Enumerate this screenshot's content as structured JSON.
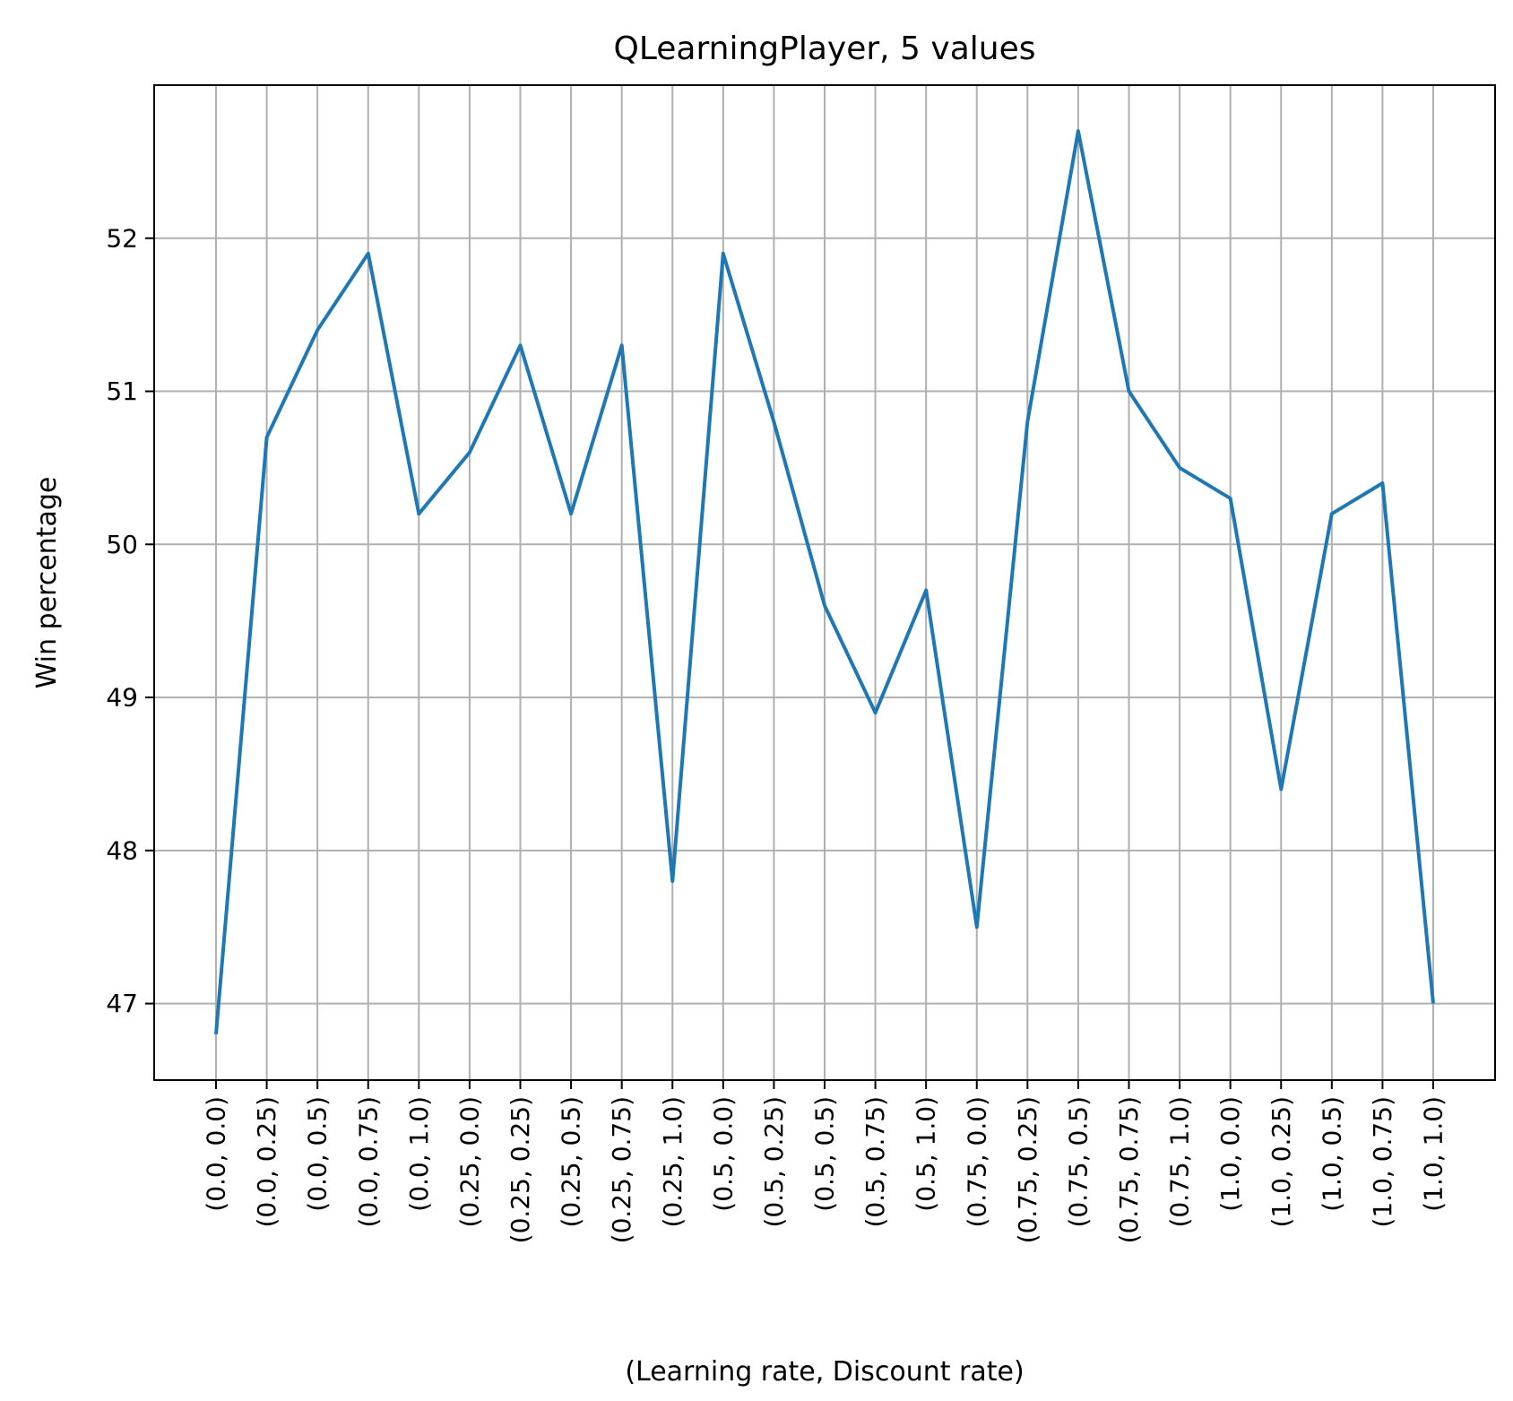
{
  "chart_data": {
    "type": "line",
    "title": "QLearningPlayer, 5 values",
    "xlabel": "(Learning rate,  Discount rate)",
    "ylabel": "Win percentage",
    "categories": [
      "(0.0, 0.0)",
      "(0.0, 0.25)",
      "(0.0, 0.5)",
      "(0.0, 0.75)",
      "(0.0, 1.0)",
      "(0.25, 0.0)",
      "(0.25, 0.25)",
      "(0.25, 0.5)",
      "(0.25, 0.75)",
      "(0.25, 1.0)",
      "(0.5, 0.0)",
      "(0.5, 0.25)",
      "(0.5, 0.5)",
      "(0.5, 0.75)",
      "(0.5, 1.0)",
      "(0.75, 0.0)",
      "(0.75, 0.25)",
      "(0.75, 0.5)",
      "(0.75, 0.75)",
      "(0.75, 1.0)",
      "(1.0, 0.0)",
      "(1.0, 0.25)",
      "(1.0, 0.5)",
      "(1.0, 0.75)",
      "(1.0, 1.0)"
    ],
    "series": [
      {
        "color": "#1f77b4",
        "values": [
          46.8,
          50.7,
          51.4,
          51.9,
          50.2,
          50.6,
          51.3,
          50.2,
          51.3,
          47.8,
          51.9,
          50.8,
          49.6,
          48.9,
          49.7,
          47.5,
          50.8,
          52.7,
          51.0,
          50.5,
          50.3,
          48.4,
          50.2,
          50.4,
          47.0
        ]
      }
    ],
    "yticks": [
      47,
      48,
      49,
      50,
      51,
      52
    ],
    "ylim": [
      46.5,
      53.0
    ],
    "grid": true
  }
}
